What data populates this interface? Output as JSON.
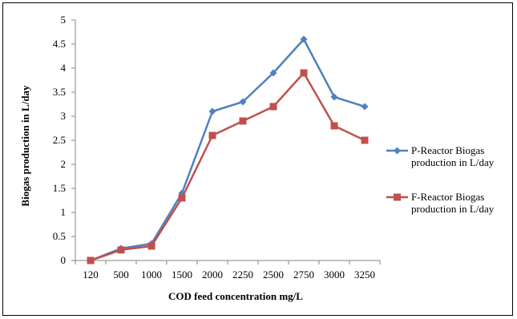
{
  "chart_data": {
    "type": "line",
    "title": "",
    "xlabel": "COD feed concentration mg/L",
    "ylabel": "Biogas production in L/day",
    "categories": [
      "120",
      "500",
      "1000",
      "1500",
      "2000",
      "2250",
      "2500",
      "2750",
      "3000",
      "3250"
    ],
    "ylim": [
      0,
      5
    ],
    "yticks": [
      "0",
      "0.5",
      "1",
      "1.5",
      "2",
      "2.5",
      "3",
      "3.5",
      "4",
      "4.5",
      "5"
    ],
    "grid": false,
    "legend_position": "right",
    "series": [
      {
        "name": "P-Reactor Biogas production in L/day",
        "legend_lines": [
          "P-Reactor Biogas",
          "production in L/day"
        ],
        "marker": "diamond",
        "color": "#4F81BD",
        "values": [
          0,
          0.25,
          0.35,
          1.4,
          3.1,
          3.3,
          3.9,
          4.6,
          3.4,
          3.2
        ]
      },
      {
        "name": "F-Reactor Biogas production in L/day",
        "legend_lines": [
          "F-Reactor Biogas",
          "production in L/day"
        ],
        "marker": "square",
        "color": "#C0504D",
        "values": [
          0,
          0.22,
          0.3,
          1.3,
          2.6,
          2.9,
          3.2,
          3.9,
          2.8,
          2.5
        ]
      }
    ]
  }
}
